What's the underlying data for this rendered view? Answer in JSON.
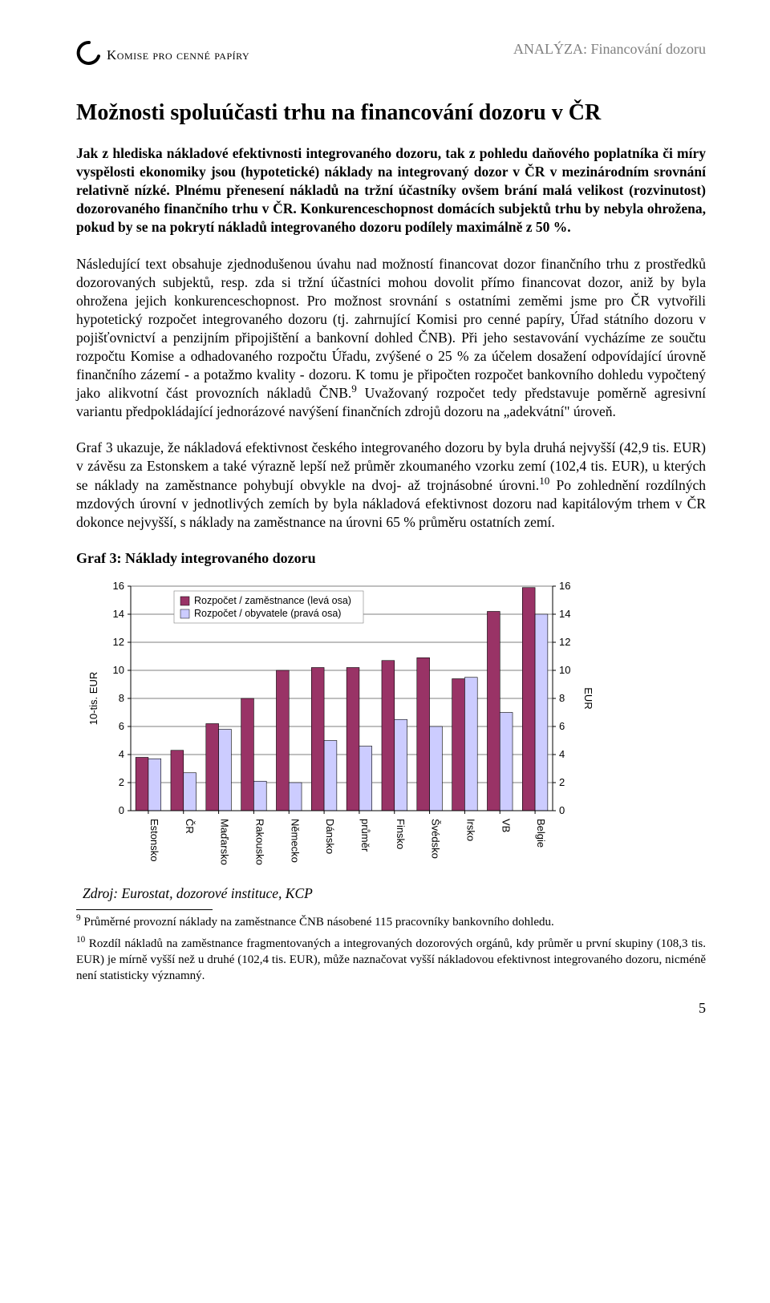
{
  "header": {
    "org_name": "Komise pro cenné papíry",
    "analysis_label": "ANALÝZA: Financování dozoru"
  },
  "title": "Možnosti spoluúčasti trhu na financování dozoru v ČR",
  "abstract": "Jak z hlediska nákladové efektivnosti integrovaného dozoru, tak z pohledu daňového poplatníka či míry vyspělosti ekonomiky jsou (hypotetické) náklady na integrovaný dozor v ČR v mezinárodním srovnání relativně nízké. Plnému přenesení nákladů na tržní účastníky ovšem brání malá velikost (rozvinutost) dozorovaného finančního trhu v ČR. Konkurenceschopnost domácích subjektů trhu by nebyla ohrožena, pokud by se na pokrytí nákladů integrovaného dozoru podílely maximálně z 50 %.",
  "paragraphs": {
    "p1a": "Následující text obsahuje zjednodušenou úvahu nad možností financovat dozor finančního trhu z prostředků dozorovaných subjektů, resp. zda si tržní účastníci mohou dovolit přímo financovat dozor, aniž by byla ohrožena jejich konkurenceschopnost. Pro možnost srovnání s ostatními zeměmi jsme pro ČR vytvořili hypotetický rozpočet integrovaného dozoru (tj. zahrnující Komisi pro cenné papíry, Úřad státního dozoru v pojišťovnictví a penzijním připojištění a bankovní dohled ČNB). Při jeho sestavování vycházíme ze součtu rozpočtu Komise a odhadovaného rozpočtu Úřadu, zvýšené o 25 % za účelem dosažení odpovídající úrovně finančního zázemí - a potažmo kvality - dozoru. K tomu je připočten rozpočet bankovního dohledu vypočtený jako alikvotní část provozních nákladů ČNB.",
    "sup9": "9",
    "p1b": " Uvažovaný rozpočet tedy představuje poměrně agresivní variantu předpokládající jednorázové navýšení finančních zdrojů dozoru na „adekvátní\" úroveň.",
    "p2a": "Graf 3 ukazuje, že nákladová efektivnost českého integrovaného dozoru by byla druhá nejvyšší (42,9 tis. EUR) v závěsu za Estonskem a také výrazně lepší než průměr zkoumaného vzorku zemí (102,4 tis. EUR), u kterých se náklady na zaměstnance pohybují obvykle na dvoj- až trojnásobné úrovni.",
    "sup10": "10",
    "p2b": " Po zohlednění rozdílných mzdových úrovní v jednotlivých zemích by byla nákladová efektivnost dozoru nad kapitálovým trhem v ČR dokonce nejvyšší, s náklady na zaměstnance na úrovni 65 % průměru ostatních zemí."
  },
  "chart": {
    "title_text": "Graf 3: Náklady integrovaného dozoru",
    "type": "grouped-bar",
    "legend": {
      "series_a": "Rozpočet / zaměstnance (levá osa)",
      "series_b": "Rozpočet / obyvatele (pravá osa)"
    },
    "categories": [
      "Estonsko",
      "ČR",
      "Maďarsko",
      "Rakousko",
      "Německo",
      "Dánsko",
      "průměr",
      "Finsko",
      "Švédsko",
      "Irsko",
      "VB",
      "Belgie"
    ],
    "values_a": [
      3.8,
      4.3,
      6.2,
      8.0,
      10.0,
      10.2,
      10.2,
      10.7,
      10.9,
      9.4,
      14.2,
      15.9
    ],
    "values_b": [
      3.7,
      2.7,
      5.8,
      2.1,
      2.0,
      5.0,
      4.6,
      6.5,
      6.0,
      9.5,
      7.0,
      14.0
    ],
    "colors": {
      "series_a": "#993366",
      "series_b": "#ccccff",
      "legend_border": "#808080",
      "gridline": "#000000",
      "axis_text": "#000000",
      "background": "#ffffff",
      "bar_border": "#000000"
    },
    "y_left": {
      "label": "10-tis. EUR",
      "min": 0,
      "max": 16,
      "step": 2
    },
    "y_right": {
      "label": "EUR",
      "min": 0,
      "max": 16,
      "step": 2
    },
    "fontsize": 13,
    "bar_group_width": 0.72,
    "bar_width": 0.36,
    "source_text": "Zdroj: Eurostat, dozorové instituce, KCP"
  },
  "footnotes": {
    "fn9_num": "9",
    "fn9_text": " Průměrné provozní náklady na zaměstnance ČNB násobené 115 pracovníky bankovního dohledu.",
    "fn10_num": "10",
    "fn10_text": " Rozdíl nákladů na zaměstnance fragmentovaných a integrovaných dozorových orgánů, kdy průměr u první skupiny (108,3 tis. EUR) je mírně vyšší než u druhé (102,4 tis. EUR), může naznačovat vyšší nákladovou efektivnost integrovaného dozoru, nicméně není statisticky významný."
  },
  "page_number": "5"
}
